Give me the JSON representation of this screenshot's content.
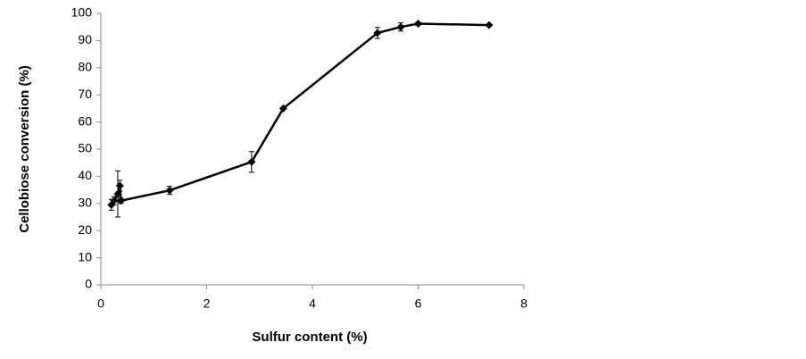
{
  "chart_data": {
    "type": "line",
    "x_label": "Sulfur content (%)",
    "y_label": "Cellobiose conversion (%)",
    "series": [
      {
        "color": "#000000",
        "x": [
          0.2,
          0.25,
          0.32,
          0.36,
          0.38,
          1.3,
          2.85,
          3.45,
          5.23,
          5.67,
          6.0,
          7.34
        ],
        "values": [
          29.5,
          31,
          33.5,
          36.5,
          31,
          34.8,
          45.3,
          65,
          92.8,
          95,
          96.2,
          95.7
        ],
        "errors": [
          2,
          1.5,
          8.5,
          2,
          1,
          1.5,
          3.8,
          0,
          2,
          1.5,
          0.5,
          0
        ]
      }
    ],
    "xlim": [
      0,
      8
    ],
    "xticks": [
      0,
      2,
      4,
      6,
      8
    ],
    "ylim": [
      0,
      100
    ],
    "yticks": [
      0,
      10,
      20,
      30,
      40,
      50,
      60,
      70,
      80,
      90,
      100
    ],
    "grid": false
  }
}
